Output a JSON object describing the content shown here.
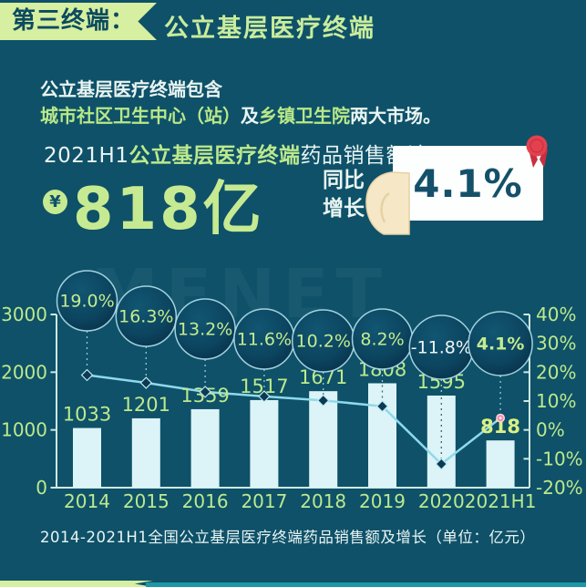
{
  "header": {
    "tag_label": "第三终端：",
    "title": "公立基层医疗终端"
  },
  "intro": {
    "line1": "公立基层医疗终端包含",
    "line2a": "城市社区卫生中心（站）",
    "line2b": "及",
    "line2c": "乡镇卫生院",
    "line2d": "两大市场。"
  },
  "highlight": {
    "prefix": "2021H1",
    "term": "公立基层医疗终端",
    "suffix": "药品销售额达",
    "currency_symbol": "¥",
    "amount": "818亿",
    "yoy_line1": "同比",
    "yoy_line2": "增长",
    "yoy_value": "4.1%"
  },
  "watermark": "MENET",
  "caption": "2014-2021H1全国公立基层医疗终端药品销售额及增长（单位：亿元）",
  "colors": {
    "background": "#0E5169",
    "band_green": "#D6EFA0",
    "accent_green": "#C6EA92",
    "label_green": "#BDE98C",
    "bar_fill": "#DCF4F7",
    "line_color": "#8FD9EC",
    "marker_fill": "#0C3A53",
    "last_marker_pink": "#F090AE",
    "axis_color": "#CFE9E2",
    "white_text": "#EAF5F2",
    "card_text": "#14506A",
    "badge_red": "#E4414F",
    "hand_fill": "#F6E8C6"
  },
  "chart_data": {
    "type": "bar+line combo",
    "title": "2014-2021H1全国公立基层医疗终端药品销售额及增长（单位：亿元）",
    "categories": [
      "2014",
      "2015",
      "2016",
      "2017",
      "2018",
      "2019",
      "2020",
      "2021H1"
    ],
    "series": [
      {
        "name": "药品销售额（亿元）",
        "type": "bar",
        "values": [
          1033,
          1201,
          1359,
          1517,
          1671,
          1808,
          1595,
          818
        ]
      },
      {
        "name": "同比增长率（%）",
        "type": "line",
        "values": [
          19.0,
          16.3,
          13.2,
          11.6,
          10.2,
          8.2,
          -11.8,
          4.1
        ],
        "labels": [
          "19.0%",
          "16.3%",
          "13.2%",
          "11.6%",
          "10.2%",
          "8.2%",
          "-11.8%",
          "4.1%"
        ]
      }
    ],
    "left_axis": {
      "ticks": [
        0,
        1000,
        2000,
        3000
      ],
      "min": 0,
      "max": 3000
    },
    "right_axis": {
      "tick_labels": [
        "40%",
        "30%",
        "20%",
        "10%",
        "0%",
        "-10%",
        "-20%"
      ],
      "tick_values": [
        40,
        30,
        20,
        10,
        0,
        -10,
        -20
      ],
      "min": -20,
      "max": 40
    },
    "grid": false,
    "legend": "none"
  }
}
